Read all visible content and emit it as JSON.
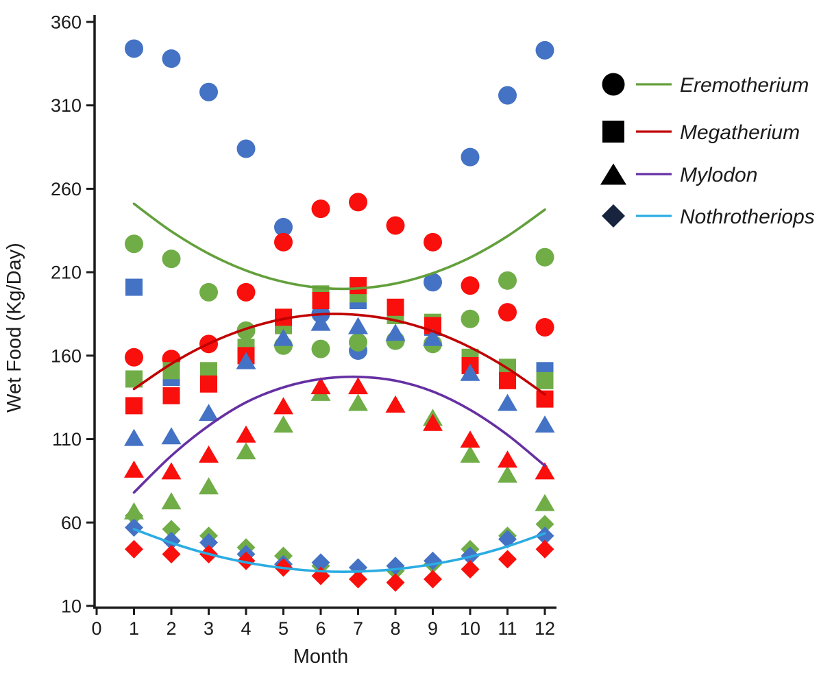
{
  "chart_data": {
    "type": "scatter",
    "title": "",
    "xlabel": "Month",
    "ylabel": "Wet Food (Kg/Day)",
    "xlim": [
      0,
      12
    ],
    "ylim": [
      10,
      360
    ],
    "grid": false,
    "legend_position": "right",
    "x_ticks": [
      0,
      1,
      2,
      3,
      4,
      5,
      6,
      7,
      8,
      9,
      10,
      11,
      12
    ],
    "y_ticks": [
      10,
      60,
      110,
      160,
      210,
      260,
      310,
      360
    ],
    "months": [
      1,
      2,
      3,
      4,
      5,
      6,
      7,
      8,
      9,
      10,
      11,
      12
    ],
    "marker_colors": {
      "blue": "#4472C4",
      "red": "#F90F0C",
      "green": "#70AD47"
    },
    "species": [
      {
        "name": "Eremotherium",
        "marker": "circle",
        "series": {
          "blue": [
            344,
            338,
            318,
            284,
            237,
            185,
            163,
            169,
            204,
            279,
            316,
            343
          ],
          "red": [
            159,
            158,
            167,
            198,
            228,
            248,
            252,
            238,
            228,
            202,
            186,
            177
          ],
          "green": [
            227,
            218,
            198,
            175,
            166,
            164,
            168,
            169,
            167,
            182,
            205,
            219
          ]
        },
        "trend_color": "#63A03C",
        "trend": [
          251,
          234.5,
          221.1,
          211.0,
          204.2,
          200.6,
          200.3,
          203.2,
          209.4,
          218.8,
          231.6,
          247.5
        ]
      },
      {
        "name": "Megatherium",
        "marker": "square",
        "series": {
          "blue": [
            201,
            147,
            149,
            160,
            182,
            193,
            193,
            186,
            177,
            155,
            147,
            151
          ],
          "red": [
            130,
            136,
            143,
            160,
            183,
            193,
            202,
            189,
            178,
            154,
            145,
            134
          ],
          "green": [
            146,
            151,
            151,
            165,
            178,
            197,
            197,
            184,
            180,
            159,
            153,
            145
          ]
        },
        "trend_color": "#C00000",
        "trend": [
          140,
          155.1,
          167.2,
          176.1,
          182,
          184.8,
          184.4,
          181.1,
          174.6,
          165,
          152.4,
          136.8
        ]
      },
      {
        "name": "Mylodon",
        "marker": "triangle",
        "series": {
          "blue": [
            111,
            112,
            126,
            157,
            171,
            180,
            178,
            174,
            171,
            150,
            132,
            119
          ],
          "red": [
            92,
            91,
            101,
            113,
            130,
            142,
            142,
            131,
            120,
            110,
            98,
            91
          ],
          "green": [
            67,
            73,
            82,
            103,
            119,
            138,
            132,
            131,
            123,
            101,
            89,
            72
          ]
        },
        "trend_color": "#6630A3",
        "trend": [
          78,
          100,
          118,
          132,
          141,
          146,
          147.3,
          145,
          138.5,
          127.5,
          112.5,
          94
        ]
      },
      {
        "name": "Nothrotheriops",
        "marker": "diamond",
        "series": {
          "blue": [
            57,
            49,
            48,
            41,
            35,
            36,
            33,
            34,
            37,
            40,
            50,
            52
          ],
          "red": [
            44,
            41,
            41,
            37,
            33,
            28,
            26,
            24,
            26,
            32,
            38,
            44
          ],
          "green": [
            64,
            56,
            52,
            45,
            40,
            34,
            33,
            31,
            35,
            44,
            52,
            59
          ]
        },
        "trend_color": "#2BACE2",
        "trend": [
          56,
          47.8,
          41.1,
          36.1,
          32.7,
          30.8,
          30.6,
          32,
          35,
          39.5,
          45.7,
          53.5
        ]
      }
    ],
    "draw_order": {
      "shapes": [
        "circle",
        "square",
        "diamond",
        "triangle"
      ],
      "colors": {
        "circle": [
          "blue",
          "red",
          "green"
        ],
        "square": [
          "blue",
          "green",
          "red"
        ],
        "diamond": [
          "green",
          "blue",
          "red"
        ],
        "triangle": [
          "blue",
          "green",
          "red"
        ]
      }
    },
    "legend": [
      {
        "label": "Eremotherium",
        "marker": "circle",
        "marker_fill": "#000000",
        "line_color": "#63A03C"
      },
      {
        "label": "Megatherium",
        "marker": "square",
        "marker_fill": "#000000",
        "line_color": "#C00000"
      },
      {
        "label": "Mylodon",
        "marker": "triangle",
        "marker_fill": "#000000",
        "line_color": "#6630A3"
      },
      {
        "label": "Nothrotheriops",
        "marker": "diamond",
        "marker_fill": "#18243E",
        "line_color": "#2BACE2"
      }
    ]
  }
}
